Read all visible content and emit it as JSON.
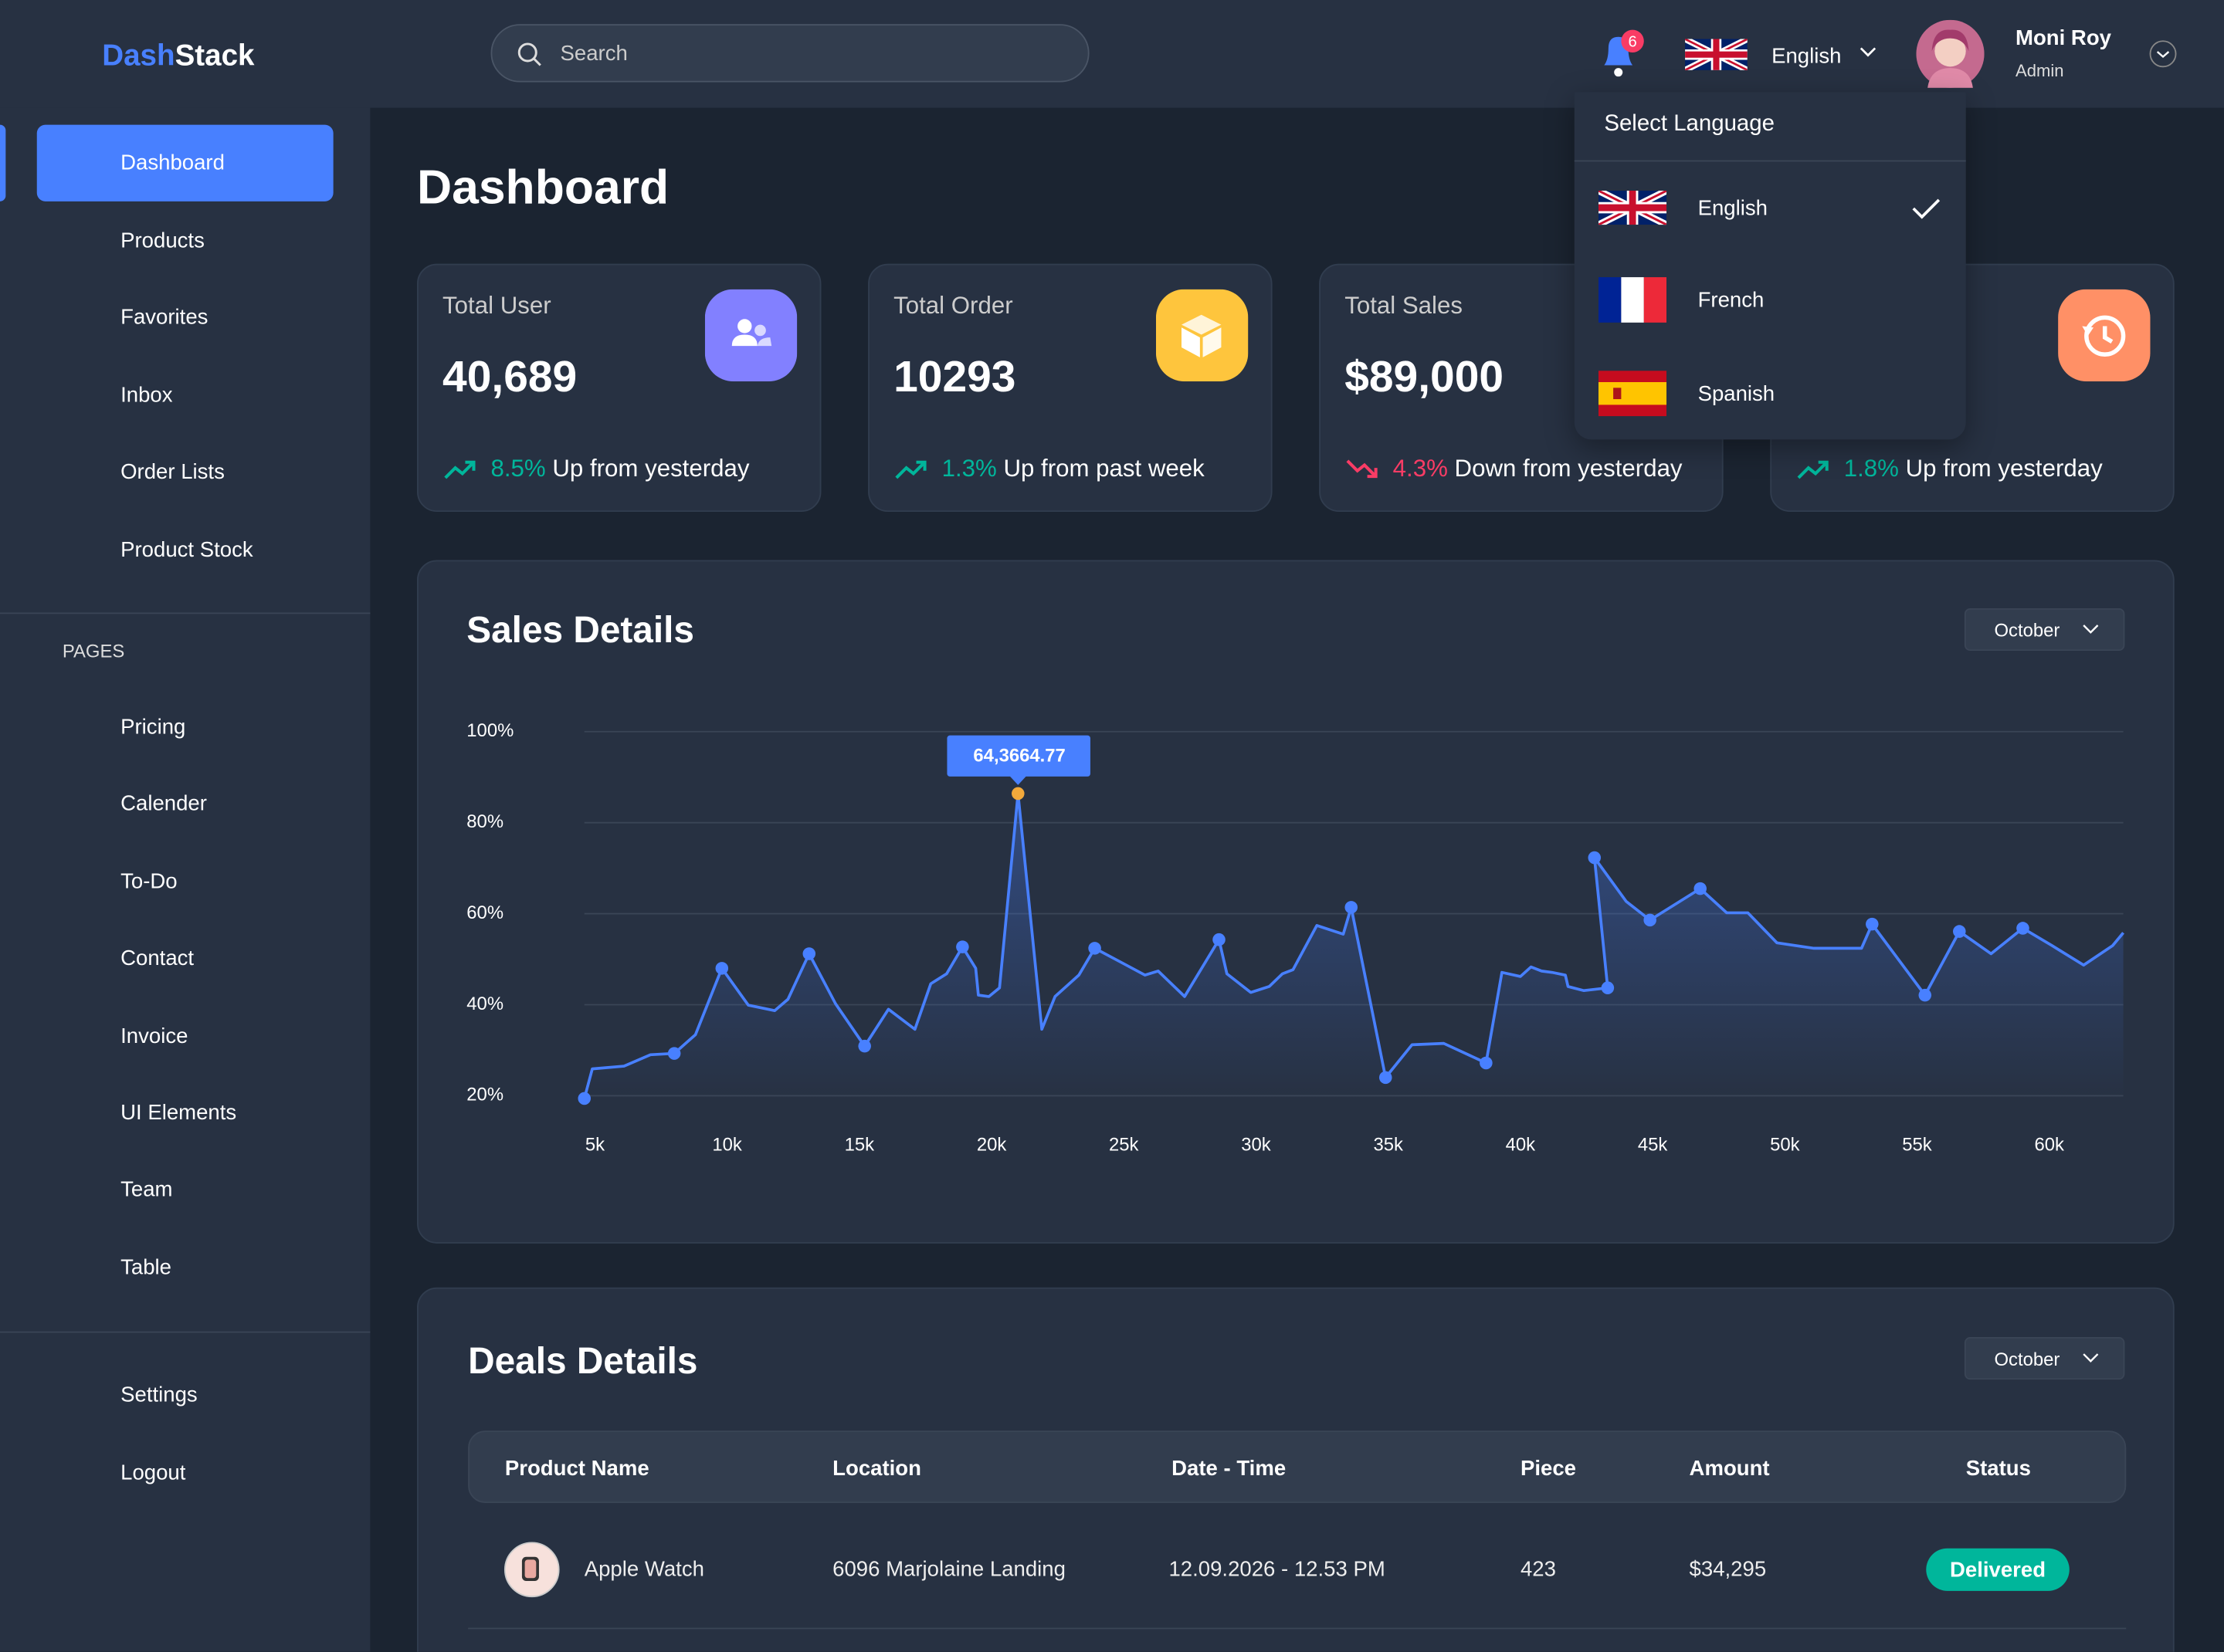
{
  "header": {
    "logo": [
      "Dash",
      "Stack"
    ],
    "search_placeholder": "Search",
    "notifications": "6",
    "language": "English",
    "user_name": "Moni Roy",
    "user_role": "Admin"
  },
  "sidebar": {
    "items": [
      "Dashboard",
      "Products",
      "Favorites",
      "Inbox",
      "Order Lists",
      "Product Stock"
    ],
    "active": "Dashboard",
    "section": "PAGES",
    "pages": [
      "Pricing",
      "Calender",
      "To-Do",
      "Contact",
      "Invoice",
      "UI Elements",
      "Team",
      "Table"
    ],
    "footer": [
      "Settings",
      "Logout"
    ]
  },
  "page_title": "Dashboard",
  "stats": [
    {
      "title": "Total User",
      "value": "40,689",
      "change": "8.5%",
      "change_text": "Up from yesterday",
      "trend": "up",
      "icon_color": "#8280ff"
    },
    {
      "title": "Total Order",
      "value": "10293",
      "change": "1.3%",
      "change_text": "Up from past week",
      "trend": "up",
      "icon_color": "#fec53d"
    },
    {
      "title": "Total Sales",
      "value": "$89,000",
      "change": "4.3%",
      "change_text": "Down from yesterday",
      "trend": "down",
      "icon_color": "#4ad991"
    },
    {
      "change": "1.8%",
      "change_text": "Up from yesterday",
      "trend": "up",
      "icon_color": "#ff9066"
    }
  ],
  "language_menu": {
    "title": "Select Language",
    "options": [
      "English",
      "French",
      "Spanish"
    ],
    "selected": "English"
  },
  "chart_data": {
    "type": "line",
    "title": "Sales Details",
    "filter": "October",
    "color": "#4880ff",
    "highlight_color": "#f2a93b",
    "annotation": "64,3664.77",
    "grid": true,
    "area": true,
    "x": [
      4.6,
      4.9,
      6.1,
      7.1,
      8.0,
      8.8,
      9.8,
      10.8,
      11.8,
      12.3,
      13.1,
      14.1,
      15.2,
      16.1,
      17.1,
      17.7,
      18.3,
      18.9,
      19.4,
      19.5,
      19.9,
      20.3,
      21.0,
      21.9,
      22.4,
      23.3,
      23.9,
      25.0,
      25.8,
      26.3,
      27.3,
      28.6,
      28.9,
      29.8,
      30.5,
      31.0,
      31.4,
      32.3,
      33.3,
      33.6,
      34.9,
      35.9,
      37.1,
      38.7,
      39.3,
      40.0,
      40.4,
      40.8,
      41.2,
      41.7,
      41.8,
      42.4,
      43.3,
      42.8,
      44.0,
      44.9,
      46.8,
      47.8,
      48.6,
      49.7,
      51.1,
      52.9,
      53.3,
      55.3,
      56.6,
      57.8,
      59.0,
      60.1,
      61.3,
      62.4,
      62.8
    ],
    "values": [
      19.4,
      25.9,
      26.5,
      29,
      29.3,
      33.4,
      48,
      39.9,
      38.7,
      41.2,
      51.2,
      40.2,
      30.9,
      39,
      34.6,
      44.6,
      46.8,
      52.7,
      48,
      42.1,
      41.8,
      43.7,
      86.4,
      34.6,
      41.8,
      46.5,
      52.4,
      49,
      46.5,
      47.4,
      41.8,
      54.3,
      46.8,
      42.7,
      44,
      46.8,
      47.7,
      57.4,
      55.5,
      61.4,
      24,
      31.2,
      31.5,
      27.2,
      47.1,
      46.2,
      48.3,
      47.4,
      47.1,
      46.5,
      44,
      43.1,
      43.7,
      72.3,
      62.7,
      58.6,
      65.5,
      60.2,
      60.2,
      53.6,
      52.4,
      52.4,
      57.7,
      42.1,
      56.1,
      51.2,
      56.8,
      53,
      48.7,
      53,
      55.8
    ],
    "markers": [
      true,
      false,
      false,
      false,
      true,
      false,
      true,
      false,
      false,
      false,
      true,
      false,
      true,
      false,
      false,
      false,
      false,
      true,
      false,
      false,
      false,
      false,
      true,
      false,
      false,
      false,
      true,
      false,
      false,
      false,
      false,
      true,
      false,
      false,
      false,
      false,
      false,
      false,
      false,
      true,
      true,
      false,
      false,
      true,
      false,
      false,
      false,
      false,
      false,
      false,
      false,
      false,
      true,
      true,
      false,
      true,
      true,
      false,
      false,
      false,
      false,
      false,
      true,
      true,
      true,
      false,
      true,
      false,
      false,
      false,
      false
    ],
    "xlim": [
      4.6,
      62.8
    ],
    "ylim": [
      19,
      100
    ],
    "xticks": [
      {
        "value": 5,
        "label": "5k"
      },
      {
        "value": 10,
        "label": "10k"
      },
      {
        "value": 15,
        "label": "15k"
      },
      {
        "value": 20,
        "label": "20k"
      },
      {
        "value": 25,
        "label": "25k"
      },
      {
        "value": 30,
        "label": "30k"
      },
      {
        "value": 35,
        "label": "35k"
      },
      {
        "value": 40,
        "label": "40k"
      },
      {
        "value": 45,
        "label": "45k"
      },
      {
        "value": 50,
        "label": "50k"
      },
      {
        "value": 55,
        "label": "55k"
      },
      {
        "value": 60,
        "label": "60k"
      }
    ],
    "yticks": [
      {
        "value": 20,
        "label": "20%"
      },
      {
        "value": 40,
        "label": "40%"
      },
      {
        "value": 60,
        "label": "60%"
      },
      {
        "value": 80,
        "label": "80%"
      },
      {
        "value": 100,
        "label": "100%"
      }
    ]
  },
  "deals": {
    "title": "Deals Details",
    "filter": "October",
    "columns": [
      "Product Name",
      "Location",
      "Date - Time",
      "Piece",
      "Amount",
      "Status"
    ],
    "rows": [
      [
        "Apple Watch",
        "6096 Marjolaine Landing",
        "12.09.2026 - 12.53 PM",
        "423",
        "$34,295",
        "Delivered"
      ]
    ]
  }
}
